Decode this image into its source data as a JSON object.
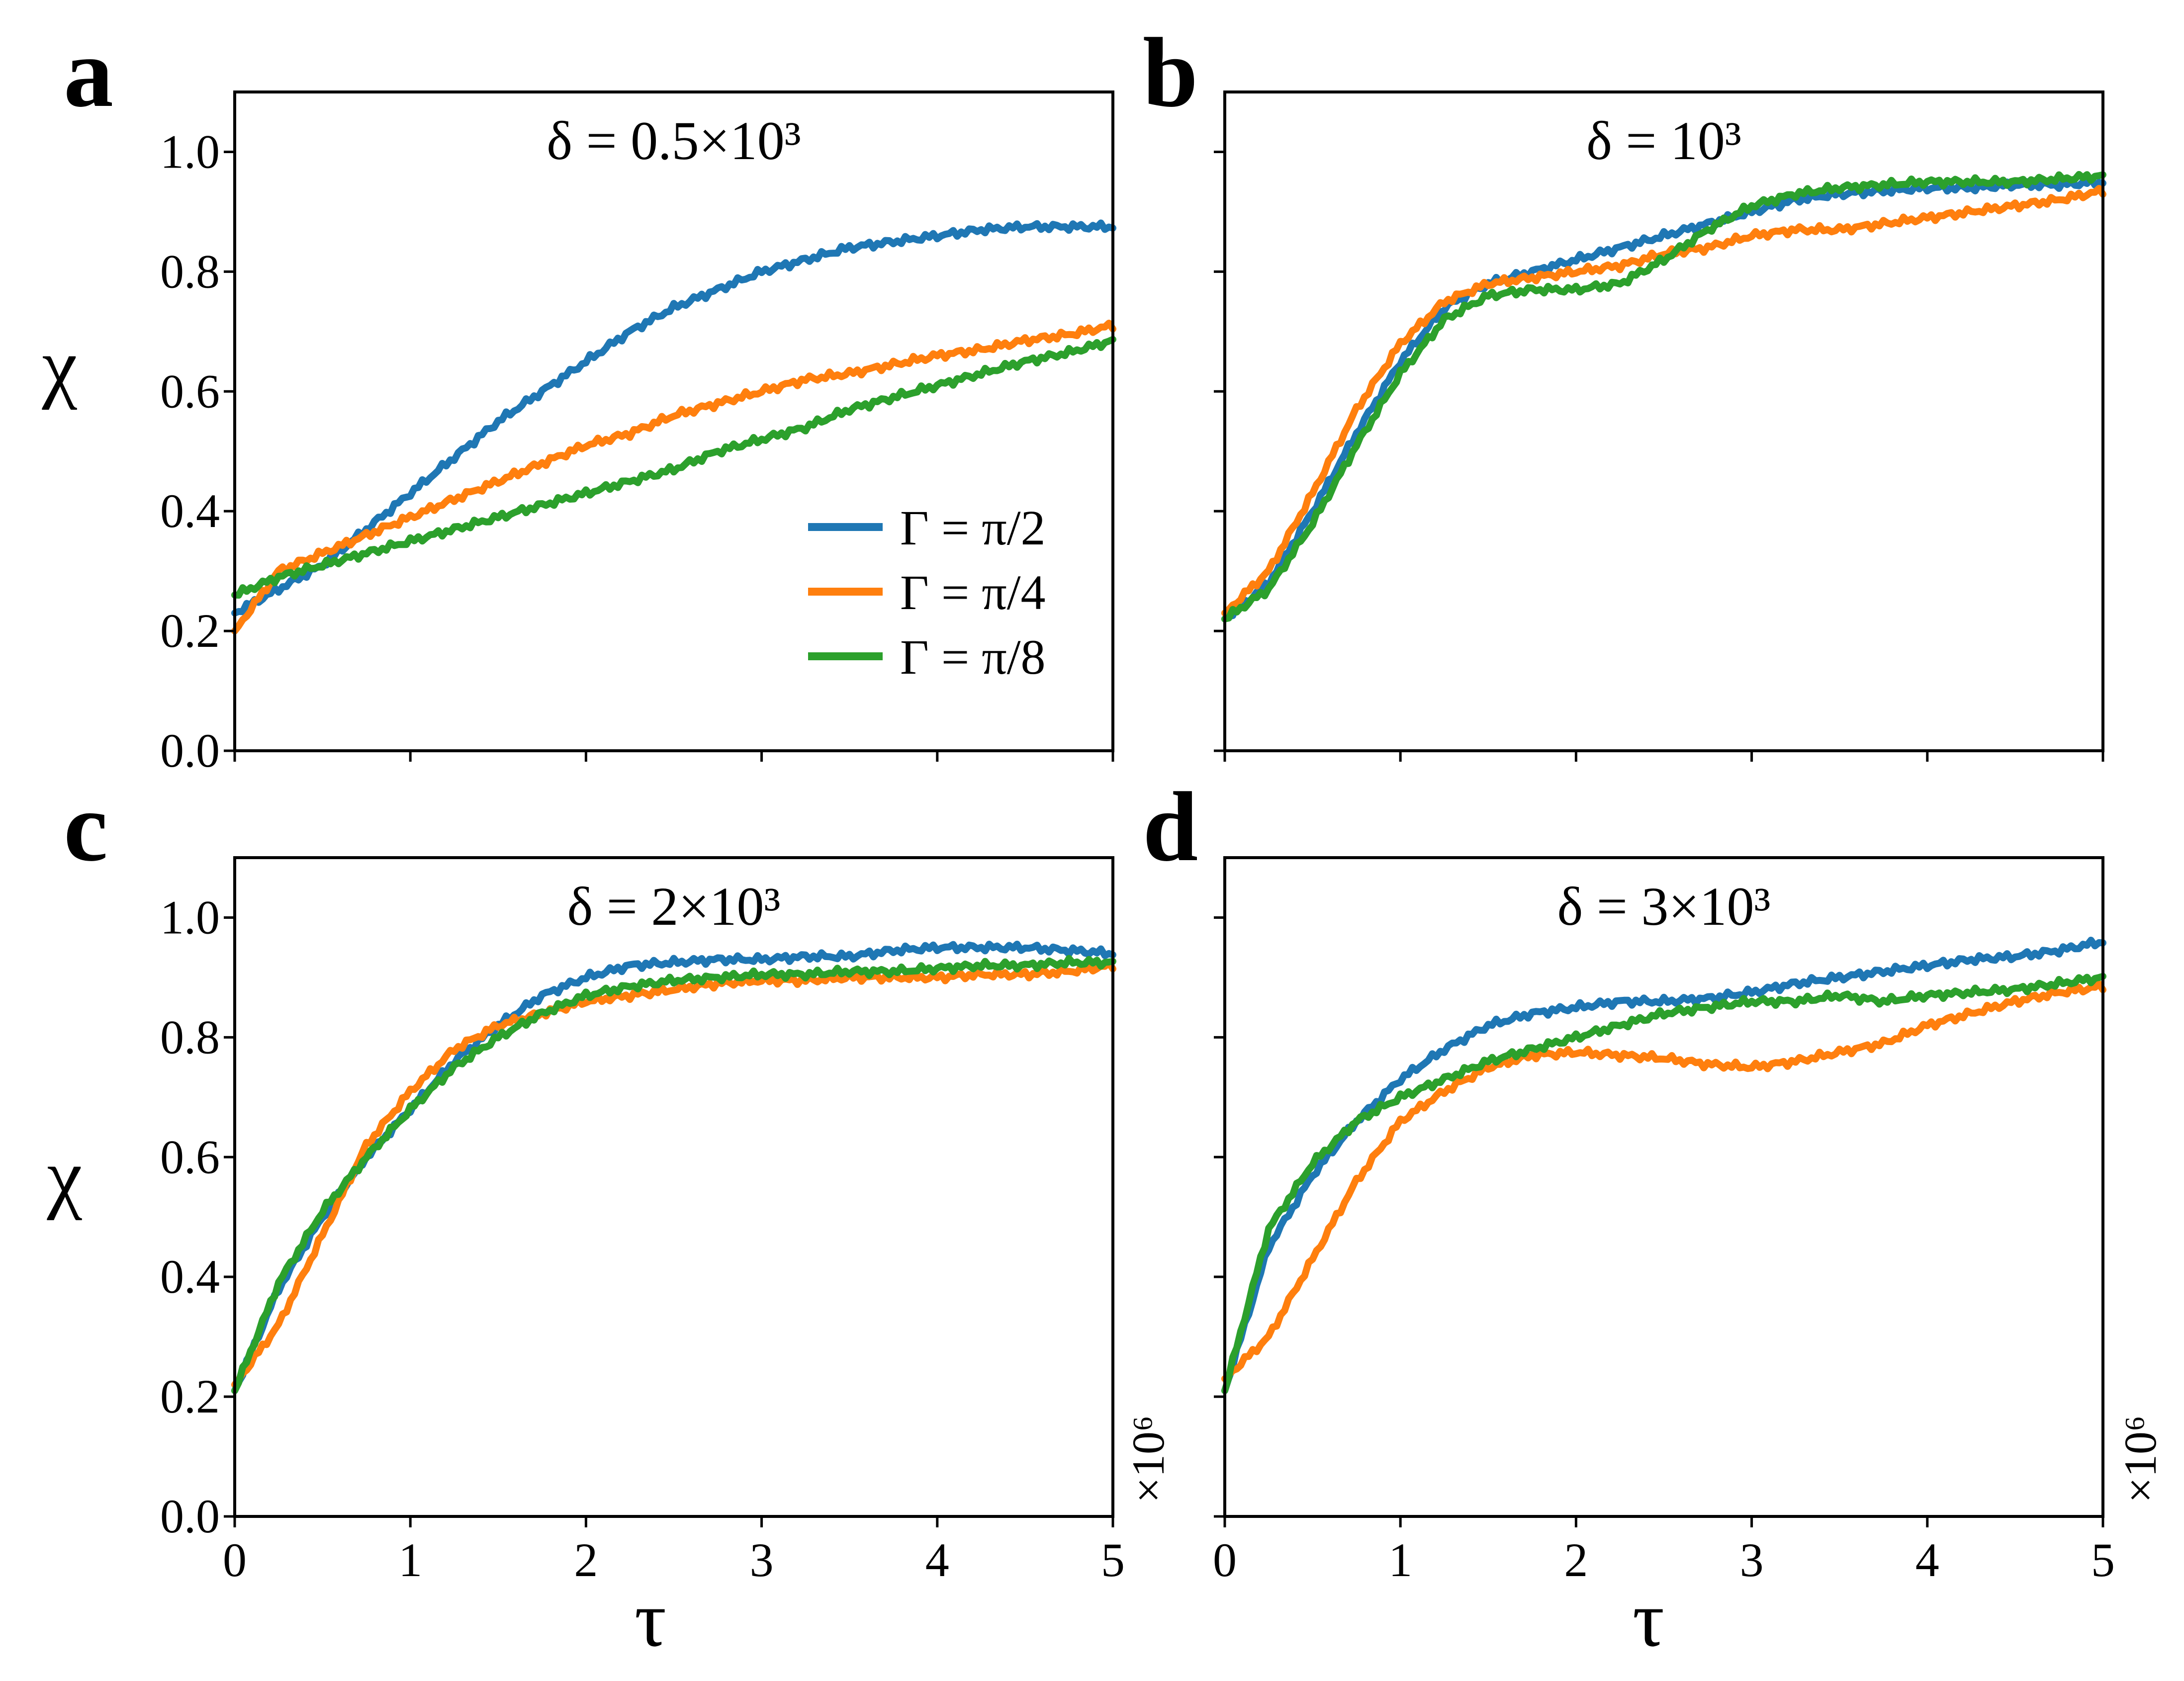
{
  "figure": {
    "panel_letters": [
      "a",
      "b",
      "c",
      "d"
    ],
    "x_axis_label": "τ",
    "y_axis_label": "χ",
    "x_offset_label": "×10⁶"
  },
  "colors": {
    "blue": "#1f77b4",
    "orange": "#ff7f0e",
    "green": "#2ca02c"
  },
  "legend": {
    "entries": [
      "Γ = π/2",
      "Γ = π/4",
      "Γ = π/8"
    ]
  },
  "chart_data": [
    {
      "panel": "a",
      "type": "line",
      "title": "δ = 0.5×10³",
      "xlabel": "",
      "ylabel": "χ",
      "xlim": [
        0,
        5
      ],
      "ylim": [
        0,
        1.1
      ],
      "xticks": [
        0,
        1,
        2,
        3,
        4,
        5
      ],
      "yticks": [
        "0.0",
        "0.2",
        "0.4",
        "0.6",
        "0.8",
        "1.0"
      ],
      "show_x_tick_labels": false,
      "show_y_tick_labels": true,
      "legend_position": "center-right",
      "x": [
        0,
        0.25,
        0.5,
        0.75,
        1.0,
        1.25,
        1.5,
        1.75,
        2.0,
        2.25,
        2.5,
        2.75,
        3.0,
        3.25,
        3.5,
        3.75,
        4.0,
        4.25,
        4.5,
        4.75,
        5.0
      ],
      "series": [
        {
          "name": "Γ = π/2",
          "color": "blue",
          "values": [
            0.23,
            0.27,
            0.31,
            0.37,
            0.43,
            0.49,
            0.55,
            0.6,
            0.65,
            0.7,
            0.74,
            0.77,
            0.8,
            0.82,
            0.84,
            0.85,
            0.86,
            0.87,
            0.875,
            0.875,
            0.875
          ]
        },
        {
          "name": "Γ = π/4",
          "color": "orange",
          "values": [
            0.2,
            0.3,
            0.33,
            0.36,
            0.39,
            0.42,
            0.45,
            0.48,
            0.51,
            0.53,
            0.56,
            0.58,
            0.6,
            0.62,
            0.63,
            0.645,
            0.66,
            0.67,
            0.685,
            0.695,
            0.71
          ]
        },
        {
          "name": "Γ = π/8",
          "color": "green",
          "values": [
            0.26,
            0.29,
            0.31,
            0.33,
            0.35,
            0.37,
            0.39,
            0.41,
            0.43,
            0.45,
            0.47,
            0.5,
            0.52,
            0.54,
            0.57,
            0.59,
            0.61,
            0.63,
            0.65,
            0.665,
            0.685
          ]
        }
      ]
    },
    {
      "panel": "b",
      "type": "line",
      "title": "δ = 10³",
      "xlabel": "",
      "ylabel": "",
      "xlim": [
        0,
        5
      ],
      "ylim": [
        0,
        1.1
      ],
      "xticks": [
        0,
        1,
        2,
        3,
        4,
        5
      ],
      "yticks": [
        "0.0",
        "0.2",
        "0.4",
        "0.6",
        "0.8",
        "1.0"
      ],
      "show_x_tick_labels": false,
      "show_y_tick_labels": false,
      "x": [
        0,
        0.25,
        0.5,
        0.75,
        1.0,
        1.25,
        1.5,
        1.75,
        2.0,
        2.25,
        2.5,
        2.75,
        3.0,
        3.25,
        3.5,
        3.75,
        4.0,
        4.25,
        4.5,
        4.75,
        5.0
      ],
      "series": [
        {
          "name": "Γ = π/2",
          "color": "blue",
          "values": [
            0.22,
            0.28,
            0.4,
            0.53,
            0.65,
            0.74,
            0.78,
            0.8,
            0.82,
            0.84,
            0.86,
            0.88,
            0.9,
            0.92,
            0.93,
            0.935,
            0.94,
            0.94,
            0.945,
            0.945,
            0.95
          ]
        },
        {
          "name": "Γ = π/4",
          "color": "orange",
          "values": [
            0.23,
            0.3,
            0.43,
            0.57,
            0.68,
            0.75,
            0.78,
            0.79,
            0.8,
            0.81,
            0.83,
            0.84,
            0.86,
            0.87,
            0.87,
            0.88,
            0.89,
            0.9,
            0.91,
            0.92,
            0.935
          ]
        },
        {
          "name": "Γ = π/8",
          "color": "green",
          "values": [
            0.22,
            0.27,
            0.38,
            0.51,
            0.63,
            0.72,
            0.76,
            0.77,
            0.77,
            0.78,
            0.82,
            0.87,
            0.91,
            0.93,
            0.94,
            0.945,
            0.95,
            0.95,
            0.95,
            0.955,
            0.96
          ]
        }
      ]
    },
    {
      "panel": "c",
      "type": "line",
      "title": "δ = 2×10³",
      "xlabel": "τ",
      "ylabel": "χ",
      "xlim": [
        0,
        5
      ],
      "ylim": [
        0,
        1.1
      ],
      "xticks": [
        0,
        1,
        2,
        3,
        4,
        5
      ],
      "yticks": [
        "0.0",
        "0.2",
        "0.4",
        "0.6",
        "0.8",
        "1.0"
      ],
      "show_x_tick_labels": true,
      "show_y_tick_labels": true,
      "x": [
        0,
        0.25,
        0.5,
        0.75,
        1.0,
        1.25,
        1.5,
        1.75,
        2.0,
        2.25,
        2.5,
        2.75,
        3.0,
        3.25,
        3.5,
        3.75,
        4.0,
        4.25,
        4.5,
        4.75,
        5.0
      ],
      "series": [
        {
          "name": "Γ = π/2",
          "color": "blue",
          "values": [
            0.21,
            0.38,
            0.5,
            0.6,
            0.68,
            0.76,
            0.82,
            0.87,
            0.9,
            0.92,
            0.925,
            0.93,
            0.93,
            0.935,
            0.935,
            0.945,
            0.95,
            0.95,
            0.95,
            0.945,
            0.94
          ]
        },
        {
          "name": "Γ = π/4",
          "color": "orange",
          "values": [
            0.22,
            0.32,
            0.47,
            0.62,
            0.71,
            0.78,
            0.82,
            0.84,
            0.86,
            0.87,
            0.88,
            0.89,
            0.895,
            0.895,
            0.9,
            0.9,
            0.9,
            0.905,
            0.905,
            0.91,
            0.92
          ]
        },
        {
          "name": "Γ = π/8",
          "color": "green",
          "values": [
            0.21,
            0.39,
            0.51,
            0.6,
            0.68,
            0.75,
            0.8,
            0.84,
            0.87,
            0.885,
            0.895,
            0.9,
            0.905,
            0.905,
            0.91,
            0.91,
            0.915,
            0.92,
            0.92,
            0.925,
            0.925
          ]
        }
      ]
    },
    {
      "panel": "d",
      "type": "line",
      "title": "δ = 3×10³",
      "xlabel": "τ",
      "ylabel": "",
      "xlim": [
        0,
        5
      ],
      "ylim": [
        0,
        1.1
      ],
      "xticks": [
        0,
        1,
        2,
        3,
        4,
        5
      ],
      "yticks": [
        "0.0",
        "0.2",
        "0.4",
        "0.6",
        "0.8",
        "1.0"
      ],
      "show_x_tick_labels": true,
      "show_y_tick_labels": false,
      "x": [
        0,
        0.25,
        0.5,
        0.75,
        1.0,
        1.25,
        1.5,
        1.75,
        2.0,
        2.25,
        2.5,
        2.75,
        3.0,
        3.25,
        3.5,
        3.75,
        4.0,
        4.25,
        4.5,
        4.75,
        5.0
      ],
      "series": [
        {
          "name": "Γ = π/2",
          "color": "blue",
          "values": [
            0.21,
            0.45,
            0.57,
            0.66,
            0.73,
            0.78,
            0.82,
            0.84,
            0.85,
            0.86,
            0.86,
            0.865,
            0.875,
            0.89,
            0.9,
            0.91,
            0.92,
            0.93,
            0.935,
            0.945,
            0.96
          ]
        },
        {
          "name": "Γ = π/4",
          "color": "orange",
          "values": [
            0.23,
            0.3,
            0.43,
            0.56,
            0.66,
            0.71,
            0.75,
            0.77,
            0.775,
            0.77,
            0.765,
            0.755,
            0.75,
            0.76,
            0.775,
            0.79,
            0.82,
            0.84,
            0.86,
            0.875,
            0.885
          ]
        },
        {
          "name": "Γ = π/8",
          "color": "green",
          "values": [
            0.21,
            0.48,
            0.59,
            0.66,
            0.7,
            0.73,
            0.76,
            0.78,
            0.8,
            0.82,
            0.84,
            0.85,
            0.86,
            0.86,
            0.87,
            0.86,
            0.87,
            0.875,
            0.88,
            0.89,
            0.9
          ]
        }
      ]
    }
  ]
}
